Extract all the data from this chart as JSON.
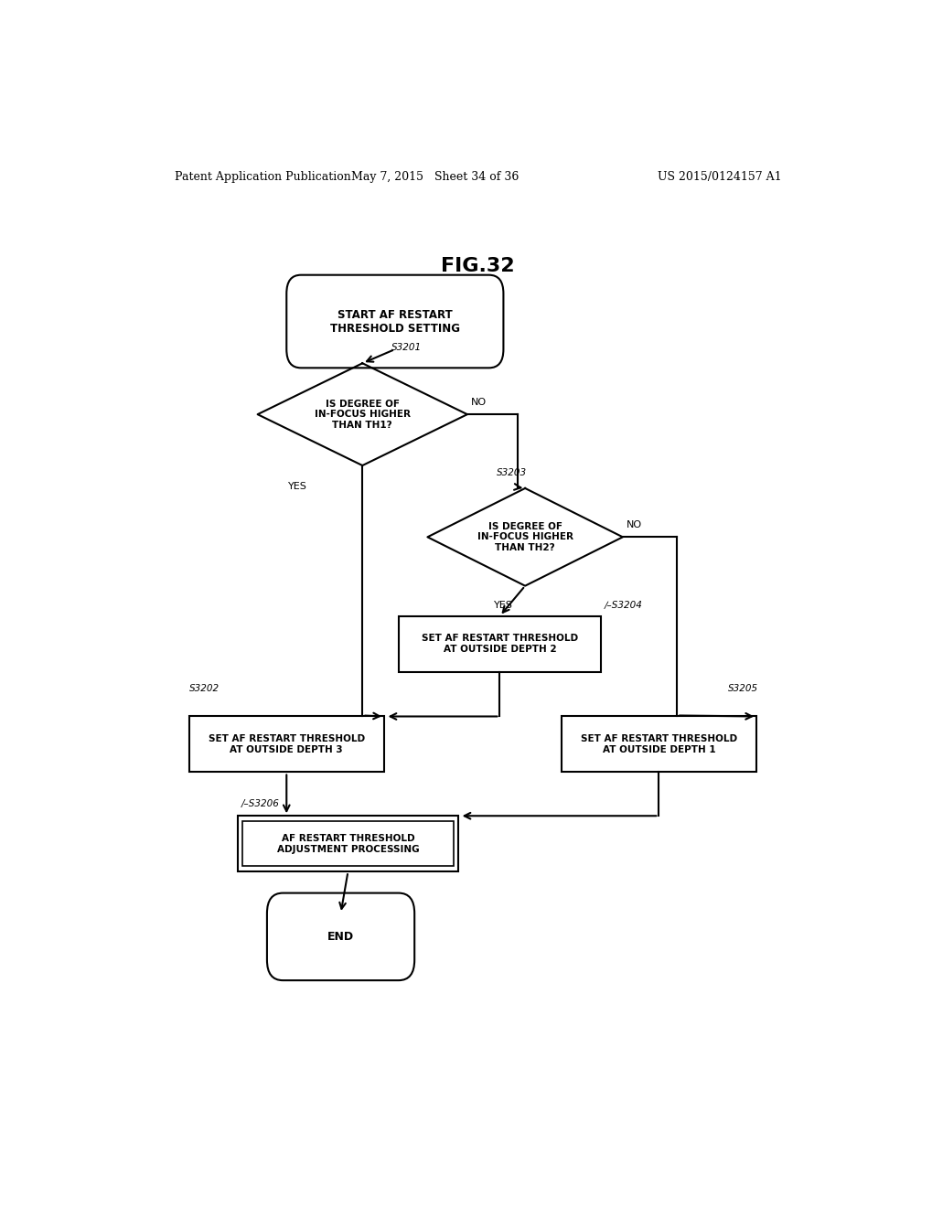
{
  "fig_title": "FIG.32",
  "header_left": "Patent Application Publication",
  "header_mid": "May 7, 2015   Sheet 34 of 36",
  "header_right": "US 2015/0124157 A1",
  "background_color": "#ffffff",
  "line_color": "#000000"
}
